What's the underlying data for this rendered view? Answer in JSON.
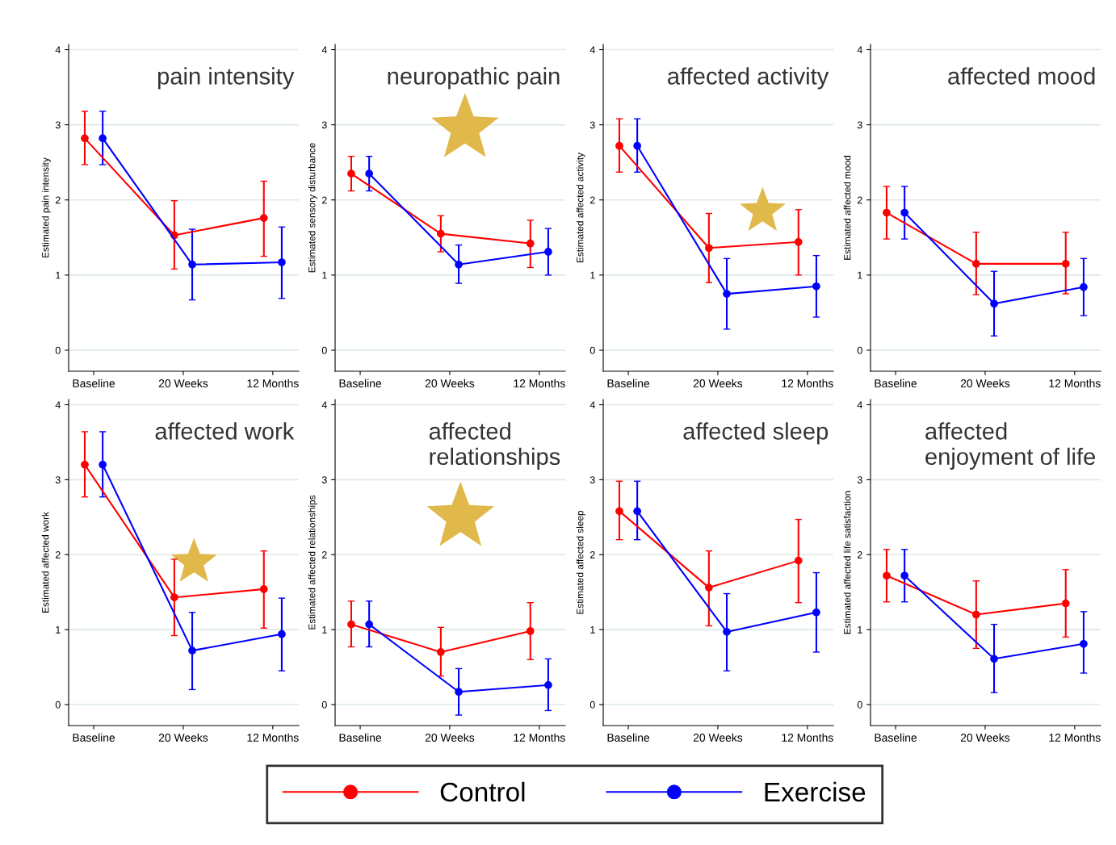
{
  "chart_data": [
    {
      "type": "line",
      "title": "pain intensity",
      "ylabel": "Estimated pain intensity",
      "categories": [
        "Baseline",
        "20 Weeks",
        "12 Months"
      ],
      "ylim": [
        -0.28,
        4.07
      ],
      "yticks": [
        0,
        1,
        2,
        3,
        4
      ],
      "grid": "y",
      "marker": "circle",
      "legend": "bottom",
      "series": [
        {
          "name": "Control",
          "color": "#ff0000",
          "values": [
            2.82,
            1.53,
            1.76
          ],
          "errors": [
            [
              2.47,
              3.18
            ],
            [
              1.08,
              1.99
            ],
            [
              1.25,
              2.25
            ]
          ]
        },
        {
          "name": "Exercise",
          "color": "#0000ff",
          "values": [
            2.82,
            1.14,
            1.17
          ],
          "errors": [
            [
              2.47,
              3.18
            ],
            [
              0.67,
              1.61
            ],
            [
              0.69,
              1.64
            ]
          ]
        }
      ]
    },
    {
      "type": "line",
      "title": "neuropathic pain",
      "ylabel": "Estimated sensory disturbance",
      "categories": [
        "Baseline",
        "20 Weeks",
        "12 Months"
      ],
      "ylim": [
        -0.28,
        4.07
      ],
      "yticks": [
        0,
        1,
        2,
        3,
        4
      ],
      "grid": "y",
      "marker": "circle",
      "series": [
        {
          "color": "#ff0000",
          "values": [
            2.35,
            1.55,
            1.42
          ],
          "errors": [
            [
              2.12,
              2.58
            ],
            [
              1.31,
              1.79
            ],
            [
              1.1,
              1.73
            ]
          ]
        },
        {
          "color": "#0000ff",
          "values": [
            2.35,
            1.14,
            1.31
          ],
          "errors": [
            [
              2.12,
              2.58
            ],
            [
              0.89,
              1.4
            ],
            [
              1.0,
              1.62
            ]
          ]
        }
      ]
    },
    {
      "type": "line",
      "title": "affected activity",
      "ylabel": "Estimated affected activity",
      "categories": [
        "Baseline",
        "20 Weeks",
        "12 Months"
      ],
      "ylim": [
        -0.28,
        4.07
      ],
      "yticks": [
        0,
        1,
        2,
        3,
        4
      ],
      "grid": "y",
      "marker": "circle",
      "series": [
        {
          "color": "#ff0000",
          "values": [
            2.72,
            1.36,
            1.44
          ],
          "errors": [
            [
              2.37,
              3.08
            ],
            [
              0.9,
              1.82
            ],
            [
              1.0,
              1.87
            ]
          ]
        },
        {
          "color": "#0000ff",
          "values": [
            2.72,
            0.75,
            0.85
          ],
          "errors": [
            [
              2.37,
              3.08
            ],
            [
              0.28,
              1.22
            ],
            [
              0.44,
              1.26
            ]
          ]
        }
      ]
    },
    {
      "type": "line",
      "title": "affected mood",
      "ylabel": "Estimated affected mood",
      "categories": [
        "Baseline",
        "20 Weeks",
        "12 Months"
      ],
      "ylim": [
        -0.28,
        4.07
      ],
      "yticks": [
        0,
        1,
        2,
        3,
        4
      ],
      "grid": "y",
      "marker": "circle",
      "series": [
        {
          "color": "#ff0000",
          "values": [
            1.83,
            1.15,
            1.15
          ],
          "errors": [
            [
              1.48,
              2.18
            ],
            [
              0.74,
              1.57
            ],
            [
              0.75,
              1.57
            ]
          ]
        },
        {
          "color": "#0000ff",
          "values": [
            1.83,
            0.62,
            0.84
          ],
          "errors": [
            [
              1.48,
              2.18
            ],
            [
              0.19,
              1.05
            ],
            [
              0.46,
              1.22
            ]
          ]
        }
      ]
    },
    {
      "type": "line",
      "title": "affected work",
      "ylabel": "Estimated affected work",
      "categories": [
        "Baseline",
        "20 Weeks",
        "12 Months"
      ],
      "ylim": [
        -0.28,
        4.07
      ],
      "yticks": [
        0,
        1,
        2,
        3,
        4
      ],
      "grid": "y",
      "marker": "circle",
      "series": [
        {
          "color": "#ff0000",
          "values": [
            3.2,
            1.43,
            1.54
          ],
          "errors": [
            [
              2.77,
              3.64
            ],
            [
              0.92,
              1.94
            ],
            [
              1.02,
              2.05
            ]
          ]
        },
        {
          "color": "#0000ff",
          "values": [
            3.2,
            0.72,
            0.94
          ],
          "errors": [
            [
              2.77,
              3.64
            ],
            [
              0.2,
              1.23
            ],
            [
              0.45,
              1.42
            ]
          ]
        }
      ]
    },
    {
      "type": "line",
      "title": "affected\nrelationships",
      "ylabel": "Estimated affected relationships",
      "categories": [
        "Baseline",
        "20 Weeks",
        "12 Months"
      ],
      "ylim": [
        -0.28,
        4.07
      ],
      "yticks": [
        0,
        1,
        2,
        3,
        4
      ],
      "grid": "y",
      "marker": "circle",
      "series": [
        {
          "color": "#ff0000",
          "values": [
            1.07,
            0.7,
            0.98
          ],
          "errors": [
            [
              0.77,
              1.38
            ],
            [
              0.38,
              1.03
            ],
            [
              0.6,
              1.36
            ]
          ]
        },
        {
          "color": "#0000ff",
          "values": [
            1.07,
            0.17,
            0.26
          ],
          "errors": [
            [
              0.77,
              1.38
            ],
            [
              -0.14,
              0.48
            ],
            [
              -0.08,
              0.61
            ]
          ]
        }
      ]
    },
    {
      "type": "line",
      "title": "affected sleep",
      "ylabel": "Estimated affected sleep",
      "categories": [
        "Baseline",
        "20 Weeks",
        "12 Months"
      ],
      "ylim": [
        -0.28,
        4.07
      ],
      "yticks": [
        0,
        1,
        2,
        3,
        4
      ],
      "grid": "y",
      "marker": "circle",
      "series": [
        {
          "color": "#ff0000",
          "values": [
            2.58,
            1.56,
            1.92
          ],
          "errors": [
            [
              2.2,
              2.98
            ],
            [
              1.05,
              2.05
            ],
            [
              1.36,
              2.47
            ]
          ]
        },
        {
          "color": "#0000ff",
          "values": [
            2.58,
            0.97,
            1.23
          ],
          "errors": [
            [
              2.2,
              2.98
            ],
            [
              0.45,
              1.48
            ],
            [
              0.7,
              1.76
            ]
          ]
        }
      ]
    },
    {
      "type": "line",
      "title": "affected\nenjoyment of life",
      "ylabel": "Estimated affected life satisfaction",
      "categories": [
        "Baseline",
        "20 Weeks",
        "12 Months"
      ],
      "ylim": [
        -0.28,
        4.07
      ],
      "yticks": [
        0,
        1,
        2,
        3,
        4
      ],
      "grid": "y",
      "marker": "circle",
      "series": [
        {
          "color": "#ff0000",
          "values": [
            1.72,
            1.2,
            1.35
          ],
          "errors": [
            [
              1.37,
              2.07
            ],
            [
              0.75,
              1.65
            ],
            [
              0.9,
              1.8
            ]
          ]
        },
        {
          "color": "#0000ff",
          "values": [
            1.72,
            0.61,
            0.81
          ],
          "errors": [
            [
              1.37,
              2.07
            ],
            [
              0.16,
              1.07
            ],
            [
              0.42,
              1.24
            ]
          ]
        }
      ]
    }
  ]
}
